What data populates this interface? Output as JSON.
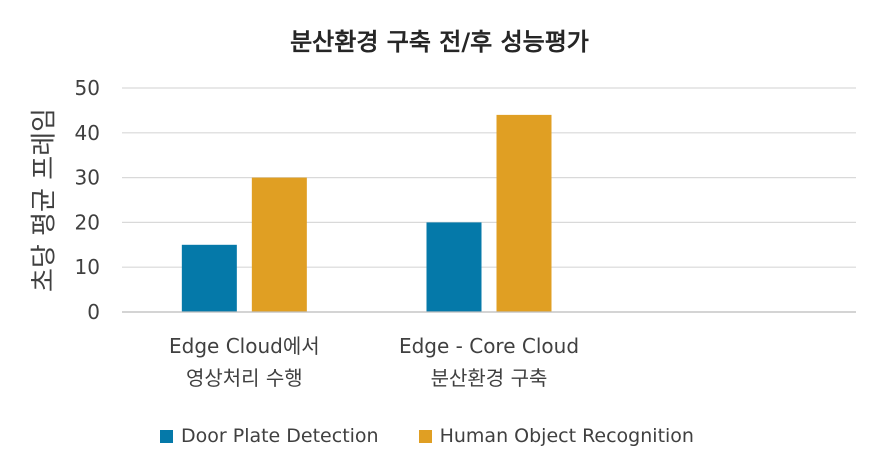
{
  "chart_data": {
    "type": "bar",
    "title": "분산환경 구축 전/후 성능평가",
    "ylabel": "초당 평균 프레임",
    "xlabel": "",
    "categories": [
      [
        "Edge Cloud에서",
        "영상처리 수행"
      ],
      [
        "Edge - Core Cloud",
        "분산환경 구축"
      ]
    ],
    "series": [
      {
        "name": "Door Plate Detection",
        "color": "#0579A9",
        "values": [
          15,
          20
        ]
      },
      {
        "name": "Human Object Recognition",
        "color": "#E09F23",
        "values": [
          30,
          44
        ]
      }
    ],
    "ylim": [
      0,
      50
    ],
    "yticks": [
      0,
      10,
      20,
      30,
      40,
      50
    ],
    "grid": true,
    "legend": "bottom"
  }
}
